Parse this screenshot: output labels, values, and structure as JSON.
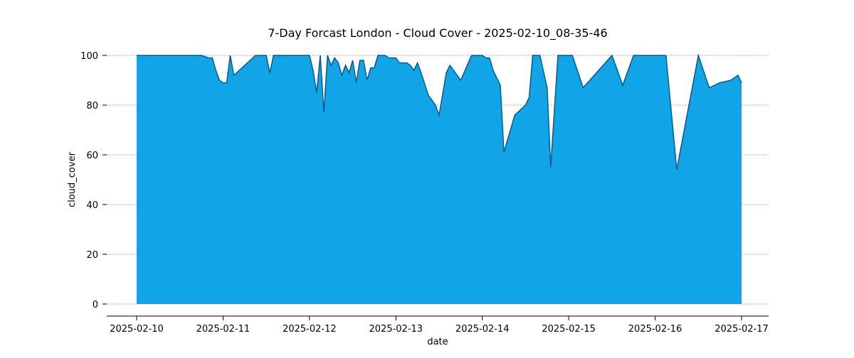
{
  "chart_data": {
    "type": "area",
    "title": "7-Day Forcast London - Cloud Cover - 2025-02-10_08-35-46",
    "xlabel": "date",
    "ylabel": "cloud_cover",
    "xlim": [
      "2025-02-10",
      "2025-02-17"
    ],
    "ylim": [
      0,
      100
    ],
    "y_ticks": [
      0,
      20,
      40,
      60,
      80,
      100
    ],
    "x_ticks": [
      "2025-02-10",
      "2025-02-11",
      "2025-02-12",
      "2025-02-13",
      "2025-02-14",
      "2025-02-15",
      "2025-02-16",
      "2025-02-17"
    ],
    "grid": "horizontal",
    "fill_color": "#11a5e8",
    "line_color": "#0a5a86",
    "x": [
      "2025-02-10T00:00",
      "2025-02-10T06:00",
      "2025-02-10T12:00",
      "2025-02-10T18:00",
      "2025-02-10T20:00",
      "2025-02-10T21:00",
      "2025-02-10T22:00",
      "2025-02-10T23:00",
      "2025-02-11T00:00",
      "2025-02-11T01:00",
      "2025-02-11T02:00",
      "2025-02-11T03:00",
      "2025-02-11T09:00",
      "2025-02-11T10:00",
      "2025-02-11T11:00",
      "2025-02-11T12:00",
      "2025-02-11T13:00",
      "2025-02-11T14:00",
      "2025-02-11T15:00",
      "2025-02-12T00:00",
      "2025-02-12T01:00",
      "2025-02-12T02:00",
      "2025-02-12T03:00",
      "2025-02-12T04:00",
      "2025-02-12T05:00",
      "2025-02-12T06:00",
      "2025-02-12T07:00",
      "2025-02-12T08:00",
      "2025-02-12T09:00",
      "2025-02-12T10:00",
      "2025-02-12T11:00",
      "2025-02-12T12:00",
      "2025-02-12T13:00",
      "2025-02-12T14:00",
      "2025-02-12T15:00",
      "2025-02-12T16:00",
      "2025-02-12T17:00",
      "2025-02-12T18:00",
      "2025-02-12T19:00",
      "2025-02-12T20:00",
      "2025-02-12T21:00",
      "2025-02-12T22:00",
      "2025-02-13T00:00",
      "2025-02-13T01:00",
      "2025-02-13T02:00",
      "2025-02-13T03:00",
      "2025-02-13T04:00",
      "2025-02-13T05:00",
      "2025-02-13T06:00",
      "2025-02-13T07:00",
      "2025-02-13T09:00",
      "2025-02-13T11:00",
      "2025-02-13T12:00",
      "2025-02-13T14:00",
      "2025-02-13T15:00",
      "2025-02-13T18:00",
      "2025-02-13T21:00",
      "2025-02-14T00:00",
      "2025-02-14T01:00",
      "2025-02-14T02:00",
      "2025-02-14T03:00",
      "2025-02-14T05:00",
      "2025-02-14T06:00",
      "2025-02-14T09:00",
      "2025-02-14T12:00",
      "2025-02-14T13:00",
      "2025-02-14T14:00",
      "2025-02-14T15:00",
      "2025-02-14T16:00",
      "2025-02-14T18:00",
      "2025-02-14T19:00",
      "2025-02-14T21:00",
      "2025-02-14T23:00",
      "2025-02-15T00:00",
      "2025-02-15T01:00",
      "2025-02-15T04:00",
      "2025-02-15T12:00",
      "2025-02-15T15:00",
      "2025-02-15T18:00",
      "2025-02-16T00:00",
      "2025-02-16T03:00",
      "2025-02-16T06:00",
      "2025-02-16T12:00",
      "2025-02-16T15:00",
      "2025-02-16T18:00",
      "2025-02-16T21:00",
      "2025-02-16T22:00",
      "2025-02-16T23:00",
      "2025-02-17T00:00"
    ],
    "values": [
      100,
      100,
      100,
      100,
      99,
      99,
      94,
      90,
      89,
      89,
      100,
      92,
      100,
      100,
      100,
      100,
      93,
      100,
      100,
      100,
      94,
      85,
      100,
      77,
      100,
      96,
      99,
      97,
      92,
      96,
      93,
      98,
      89,
      98,
      98,
      90,
      95,
      95,
      100,
      100,
      100,
      99,
      99,
      97,
      97,
      97,
      96,
      94,
      97,
      93,
      84,
      80,
      76,
      93,
      96,
      90,
      100,
      100,
      99,
      99,
      94,
      88,
      61,
      76,
      80,
      83,
      100,
      100,
      100,
      87,
      55,
      100,
      100,
      100,
      100,
      87,
      100,
      88,
      100,
      100,
      100,
      54,
      100,
      87,
      89,
      90,
      91,
      92,
      89
    ]
  }
}
